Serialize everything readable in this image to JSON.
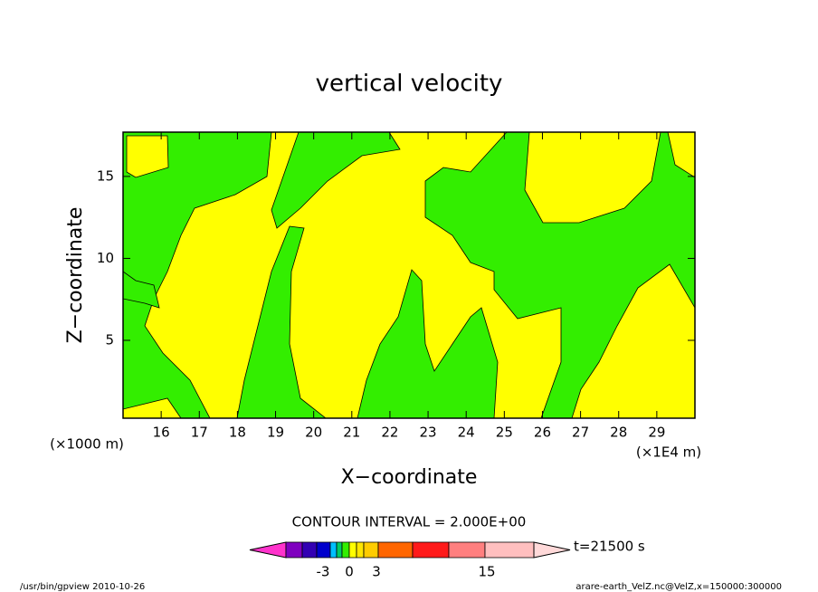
{
  "chart_data": {
    "type": "contour",
    "title": "vertical velocity",
    "x_label": "X−coordinate",
    "y_label": "Z−coordinate",
    "x_unit": "(×1E4 m)",
    "y_unit": "(×1000 m)",
    "xlim": [
      15,
      30
    ],
    "xticks": [
      16,
      17,
      18,
      19,
      20,
      21,
      22,
      23,
      24,
      25,
      26,
      27,
      28,
      29
    ],
    "ylim": [
      0.25,
      17.7
    ],
    "yticks": [
      5,
      10,
      15
    ],
    "fill_colors": [
      "#ffff00",
      "#33ee00"
    ],
    "contour_interval": "CONTOUR INTERVAL = 2.000E+00",
    "time": "t=21500 s",
    "colorbar": {
      "colors": [
        "#7f00bf",
        "#3300b3",
        "#0000cc",
        "#00bfff",
        "#00cc66",
        "#33ee00",
        "#ffff00",
        "#ffe600",
        "#ffcc00",
        "#ff6600",
        "#ff1a1a",
        "#ff7f7f",
        "#ffbfbf"
      ],
      "under_color": "#ff33cc",
      "over_color": "#ffd9d9",
      "ticks": [
        -3,
        0,
        3,
        15
      ]
    },
    "footer_left": "/usr/bin/gpview  2010-10-26",
    "footer_right": "arare-earth_VelZ.nc@VelZ,x=150000:300000"
  }
}
